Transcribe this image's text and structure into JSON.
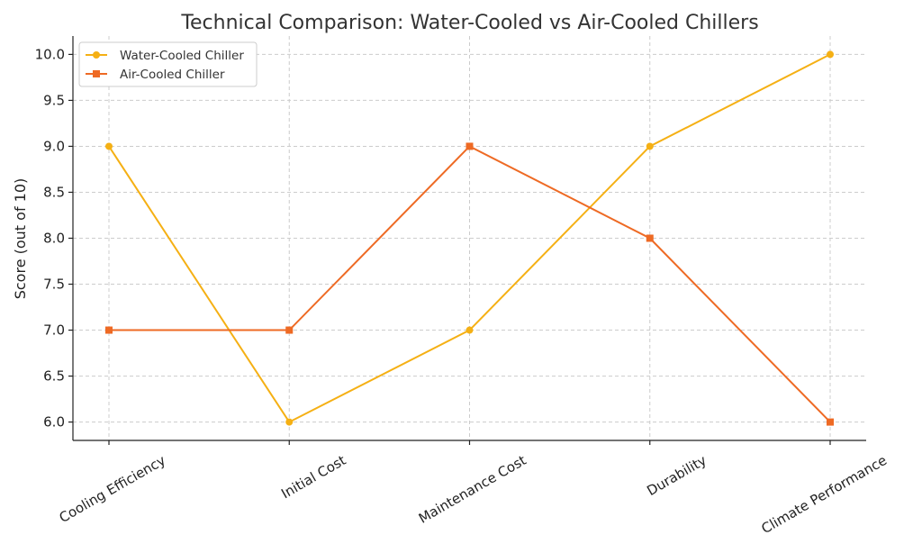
{
  "chart_data": {
    "type": "line",
    "title": "Technical Comparison: Water-Cooled vs Air-Cooled Chillers",
    "xlabel": "",
    "ylabel": "Score (out of 10)",
    "categories": [
      "Cooling Efficiency",
      "Initial Cost",
      "Maintenance Cost",
      "Durability",
      "Climate Performance"
    ],
    "ylim": [
      5.8,
      10.2
    ],
    "yticks": [
      6.0,
      6.5,
      7.0,
      7.5,
      8.0,
      8.5,
      9.0,
      9.5,
      10.0
    ],
    "yticks_labels": [
      "6.0",
      "6.5",
      "7.0",
      "7.5",
      "8.0",
      "8.5",
      "9.0",
      "9.5",
      "10.0"
    ],
    "grid": true,
    "legend_position": "top-left",
    "series": [
      {
        "name": "Water-Cooled Chiller",
        "values": [
          9,
          6,
          7,
          9,
          10
        ],
        "color": "#F5B014",
        "marker": "circle"
      },
      {
        "name": "Air-Cooled Chiller",
        "values": [
          7,
          7,
          9,
          8,
          6
        ],
        "color": "#EE6A24",
        "marker": "square"
      }
    ]
  }
}
